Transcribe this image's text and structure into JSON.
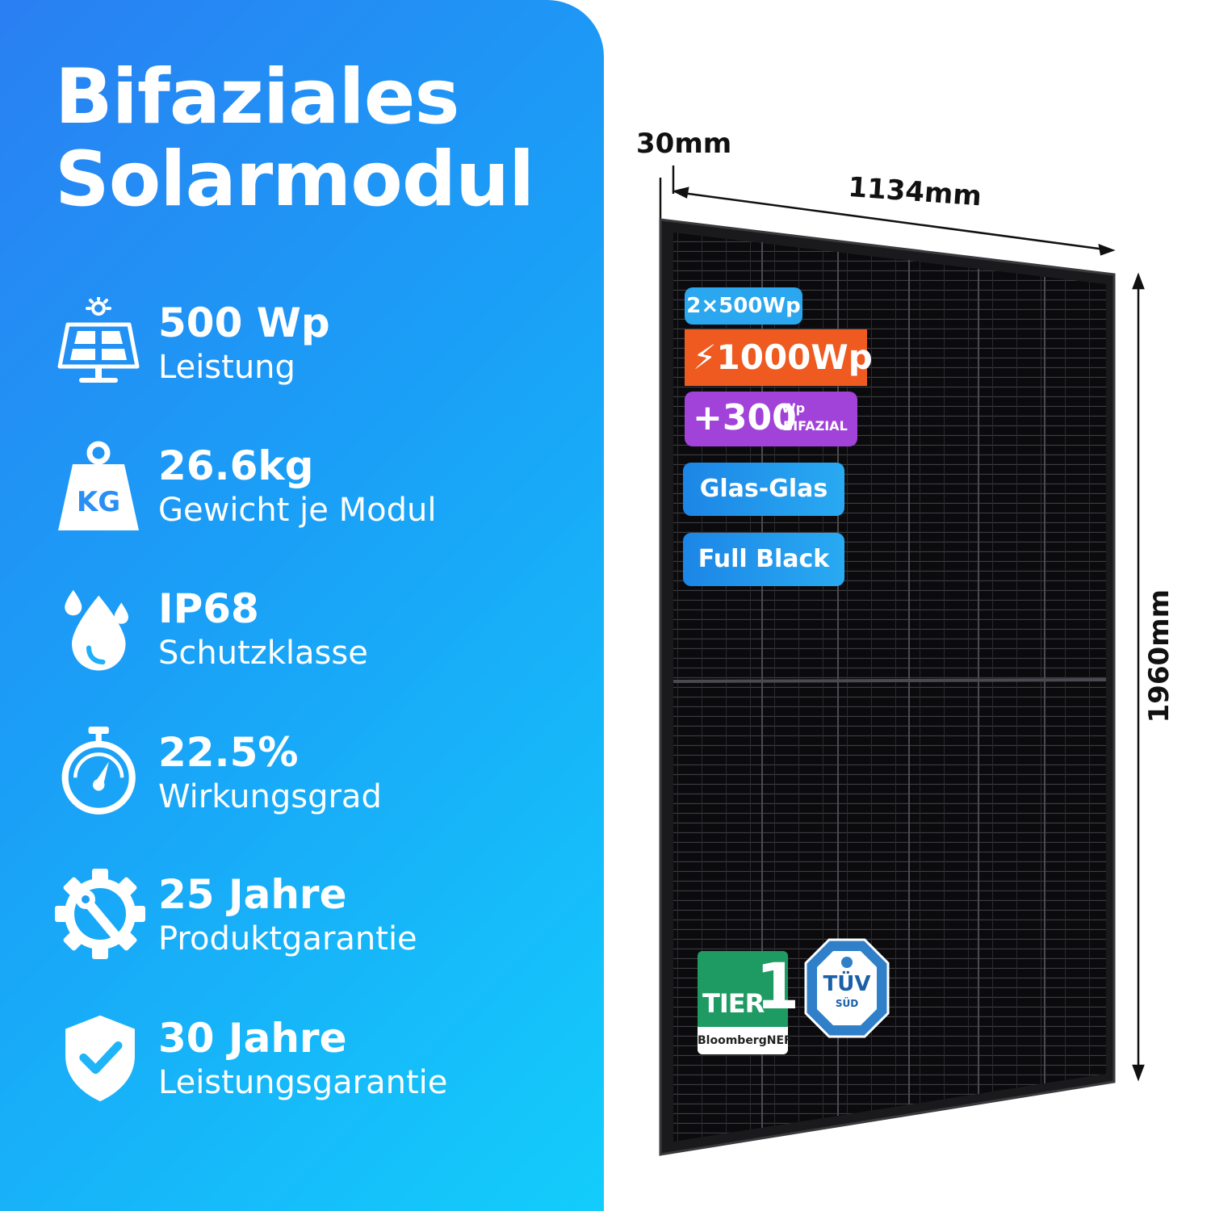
{
  "title": {
    "line1": "Bifaziales",
    "line2": "Solarmodul"
  },
  "features": [
    {
      "icon": "solar-panel-sun-icon",
      "value": "500 Wp",
      "label": "Leistung"
    },
    {
      "icon": "kg-weight-icon",
      "value": "26.6kg",
      "label": "Gewicht je Modul"
    },
    {
      "icon": "water-drops-icon",
      "value": "IP68",
      "label": "Schutzklasse"
    },
    {
      "icon": "stopwatch-gauge-icon",
      "value": "22.5%",
      "label": "Wirkungsgrad"
    },
    {
      "icon": "gear-wrench-icon",
      "value": "25 Jahre",
      "label": "Produktgarantie"
    },
    {
      "icon": "shield-check-icon",
      "value": "30 Jahre",
      "label": "Leistungsgarantie"
    }
  ],
  "dimensions": {
    "thickness": "30mm",
    "width": "1134mm",
    "height": "1960mm"
  },
  "badges": {
    "set": "2×500Wp",
    "total": "1000Wp",
    "bifacial_value": "+300",
    "bifacial_unit": "Wp",
    "bifacial_label": "BIFAZIAL",
    "glass": "Glas-Glas",
    "color": "Full Black"
  },
  "certifications": {
    "tier_word": "TIER",
    "tier_number": "1",
    "tier_source": "BloombergNEF",
    "tuv_main": "TÜV",
    "tuv_sub": "SÜD"
  },
  "colors": {
    "panel_gradient_start": "#2a7ff2",
    "panel_gradient_end": "#13cdfb",
    "badge_blue": "#2aa7ee",
    "badge_orange": "#ee5a1f",
    "badge_purple": "#a142d8",
    "tier_green": "#1e9a63",
    "tuv_blue": "#1a5fa8"
  }
}
